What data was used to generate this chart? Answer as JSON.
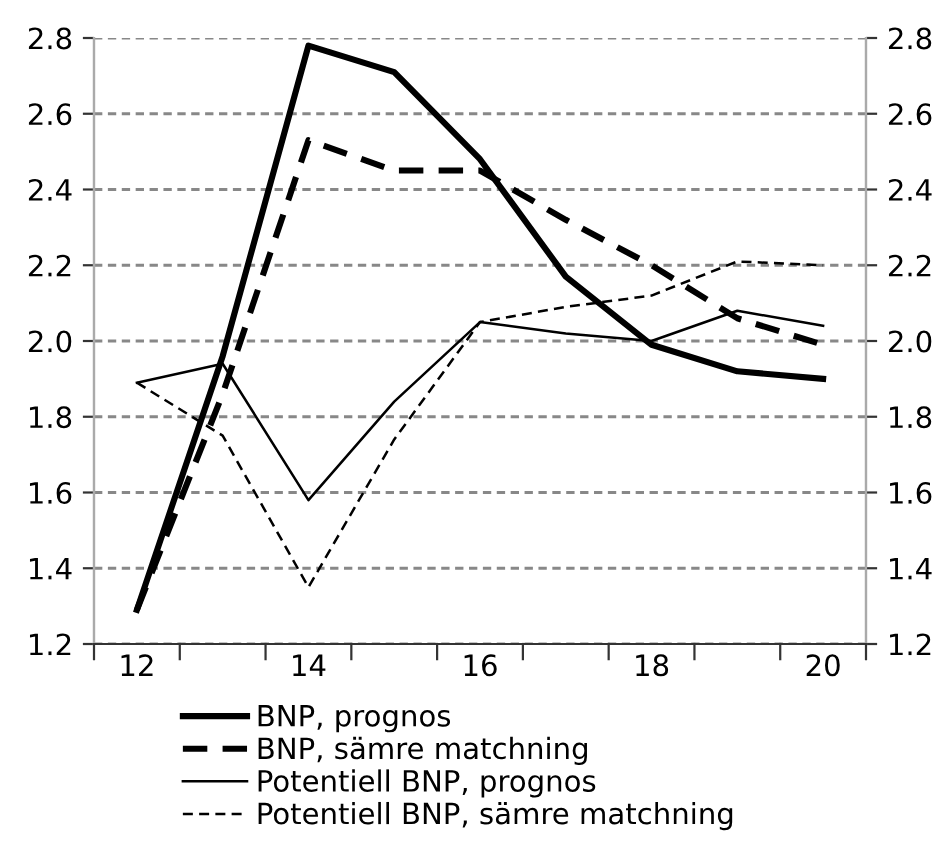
{
  "chart_data": {
    "type": "line",
    "categories": [
      "12",
      null,
      "14",
      null,
      "16",
      null,
      "18",
      null,
      "20"
    ],
    "series": [
      {
        "name": "BNP, prognos",
        "color": "#000000",
        "line_style": "solid",
        "values": [
          1.29,
          1.96,
          2.78,
          2.71,
          2.48,
          2.17,
          1.99,
          1.92,
          1.9
        ]
      },
      {
        "name": "BNP, sämre matchning",
        "color": "#000000",
        "line_style": "dashed",
        "values": [
          1.29,
          1.86,
          2.53,
          2.45,
          2.45,
          2.32,
          2.2,
          2.06,
          1.99
        ]
      },
      {
        "name": "Potentiell BNP, prognos",
        "color": "#000000",
        "line_style": "solid",
        "values": [
          1.89,
          1.94,
          1.58,
          1.84,
          2.05,
          2.02,
          2.0,
          2.08,
          2.04
        ]
      },
      {
        "name": "Potentiell BNP, sämre matchning",
        "color": "#000000",
        "line_style": "dashed",
        "values": [
          1.89,
          1.75,
          1.35,
          1.74,
          2.05,
          2.09,
          2.12,
          2.21,
          2.2
        ]
      }
    ],
    "ylim": [
      1.2,
      2.8
    ],
    "yticks": [
      1.2,
      1.4,
      1.6,
      1.8,
      {
        "value": 2,
        "label": "2.0"
      },
      2.2,
      2.4,
      2.6,
      2.8
    ],
    "y2lim": [
      1.2,
      2.8
    ],
    "y2ticks": [
      1.2,
      1.4,
      1.6,
      1.8,
      {
        "value": 2,
        "label": "2.0"
      },
      2.2,
      2.4,
      2.6,
      2.8
    ],
    "grid": "y",
    "legend": "bottom",
    "marker": "none"
  }
}
